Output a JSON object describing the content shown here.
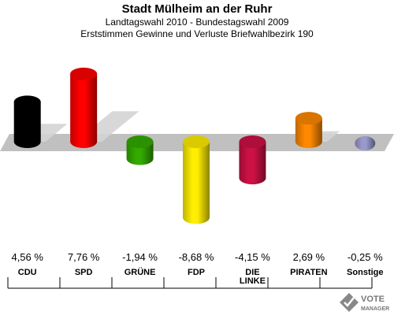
{
  "header": {
    "title": "Stadt Mülheim an der Ruhr",
    "subtitle": "Landtagswahl 2010 - Bundestagswahl 2009",
    "caption": "Erststimmen Gewinne und Verluste Briefwahlbezirk 190"
  },
  "chart_data": {
    "type": "bar",
    "title": "Stadt Mülheim an der Ruhr",
    "subtitle": "Landtagswahl 2010 - Bundestagswahl 2009",
    "caption": "Erststimmen Gewinne und Verluste Briefwahlbezirk 190",
    "categories": [
      "CDU",
      "SPD",
      "GRÜNE",
      "FDP",
      "DIE LINKE",
      "PIRATEN",
      "Sonstige"
    ],
    "category_lines": [
      [
        "CDU"
      ],
      [
        "SPD"
      ],
      [
        "GRÜNE"
      ],
      [
        "FDP"
      ],
      [
        "DIE",
        "LINKE"
      ],
      [
        "PIRATEN"
      ],
      [
        "Sonstige"
      ]
    ],
    "values": [
      4.56,
      7.76,
      -1.94,
      -8.68,
      -4.15,
      2.69,
      -0.25
    ],
    "value_labels": [
      "4,56 %",
      "7,76 %",
      "-1,94 %",
      "-8,68 %",
      "-4,15 %",
      "2,69 %",
      "-0,25 %"
    ],
    "colors": [
      "#000000",
      "#ff0000",
      "#33aa00",
      "#ffee00",
      "#cc1144",
      "#ff8800",
      "#9999cc"
    ],
    "unit": "%",
    "legend": "none",
    "grid": false
  },
  "logo": {
    "line1": "VOTE",
    "line2": "MANAGER"
  }
}
